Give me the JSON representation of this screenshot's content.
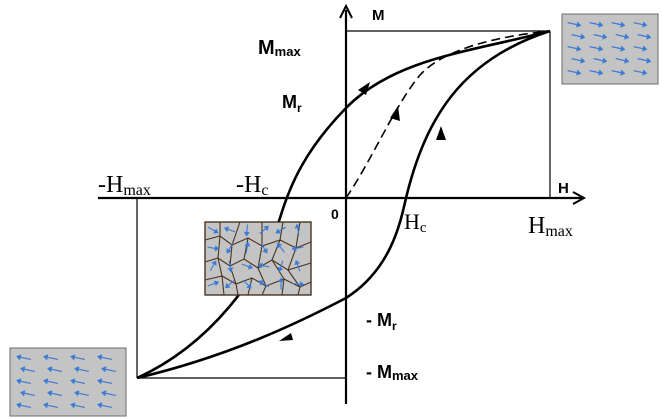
{
  "diagram": {
    "axes": {
      "y_label": "M",
      "x_label": "H",
      "origin_label": "0"
    },
    "labels": {
      "m_max": "M",
      "m_max_sub": "max",
      "m_r": "M",
      "m_r_sub": "r",
      "neg_m_r": "- M",
      "neg_m_r_sub": "r",
      "neg_m_max": "- M",
      "neg_m_max_sub": "max",
      "neg_h_max": "-H",
      "neg_h_max_sub": "max",
      "neg_h_c": "-H",
      "neg_h_c_sub": "c",
      "h_c": "H",
      "h_c_sub": "c",
      "h_max": "H",
      "h_max_sub": "max"
    },
    "insets": [
      {
        "name": "saturated-positive",
        "state": "aligned domains, arrows right"
      },
      {
        "name": "demagnetized",
        "state": "random domains"
      },
      {
        "name": "saturated-negative",
        "state": "aligned domains, arrows left"
      }
    ],
    "colors": {
      "curve": "#000000",
      "inset_bg": "#c4c4c4",
      "inset_arrow": "#3a7bd5",
      "inset_border": "#6b6b6b",
      "grain_border": "#4a3420"
    }
  }
}
